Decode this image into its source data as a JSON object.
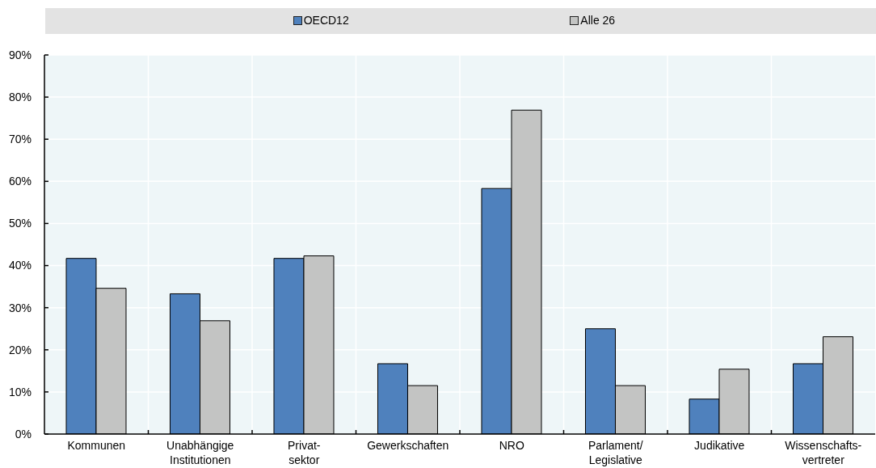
{
  "chart_data": {
    "type": "bar",
    "categories": [
      "Kommunen",
      "Unabhängige\nInstitutionen",
      "Privat-\nsektor",
      "Gewerkschaften",
      "NRO",
      "Parlament/\nLegislative",
      "Judikative",
      "Wissenschafts-\nvertreter"
    ],
    "series": [
      {
        "name": "OECD12",
        "color": "#4f81bd",
        "values": [
          41.7,
          33.3,
          41.7,
          16.7,
          58.3,
          25,
          8.3,
          16.7
        ]
      },
      {
        "name": "Alle 26",
        "color": "#c3c4c3",
        "values": [
          34.6,
          26.9,
          42.3,
          11.5,
          76.9,
          11.5,
          15.4,
          23.1
        ]
      }
    ],
    "ylim": [
      0,
      90
    ],
    "yticks": [
      {
        "value": 0,
        "label": "0%"
      },
      {
        "value": 10,
        "label": "10%"
      },
      {
        "value": 20,
        "label": "20%"
      },
      {
        "value": 30,
        "label": "30%"
      },
      {
        "value": 40,
        "label": "40%"
      },
      {
        "value": 50,
        "label": "50%"
      },
      {
        "value": 60,
        "label": "60%"
      },
      {
        "value": 70,
        "label": "70%"
      },
      {
        "value": 80,
        "label": "80%"
      },
      {
        "value": 90,
        "label": "90%"
      }
    ],
    "grid": true,
    "legend": "top"
  }
}
